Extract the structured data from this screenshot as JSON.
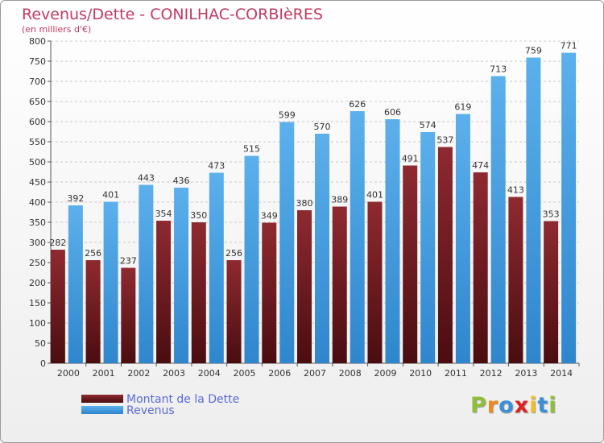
{
  "header": {
    "title": "Revenus/Dette - CONILHAC-CORBIèRES",
    "subtitle": "(en milliers d'€)"
  },
  "chart_data": {
    "type": "bar",
    "title": "Revenus/Dette - CONILHAC-CORBIèRES",
    "ylabel": "(en milliers d'€)",
    "xlabel": "",
    "ylim": [
      0,
      800
    ],
    "ytick_step": 50,
    "grid": true,
    "legend_position": "bottom-left",
    "categories": [
      "2000",
      "2001",
      "2002",
      "2003",
      "2004",
      "2005",
      "2006",
      "2007",
      "2008",
      "2009",
      "2010",
      "2011",
      "2012",
      "2013",
      "2014"
    ],
    "series": [
      {
        "name": "Montant de la Dette",
        "color": "#7a1f24",
        "values": [
          282,
          256,
          237,
          354,
          350,
          256,
          349,
          380,
          389,
          401,
          491,
          537,
          474,
          413,
          353
        ]
      },
      {
        "name": "Revenus",
        "color": "#4aa3e6",
        "values": [
          392,
          401,
          443,
          436,
          473,
          515,
          599,
          570,
          626,
          606,
          574,
          619,
          713,
          759,
          771
        ]
      }
    ]
  },
  "logo": {
    "text": "Proxiti",
    "letters": [
      "P",
      "r",
      "o",
      "x",
      "i",
      "t",
      "i"
    ],
    "colors": [
      "#8fbf3a",
      "#f08a1a",
      "#3a8fd8",
      "#e02020",
      "#f0c020",
      "#3a8fd8",
      "#8fbf3a"
    ]
  }
}
